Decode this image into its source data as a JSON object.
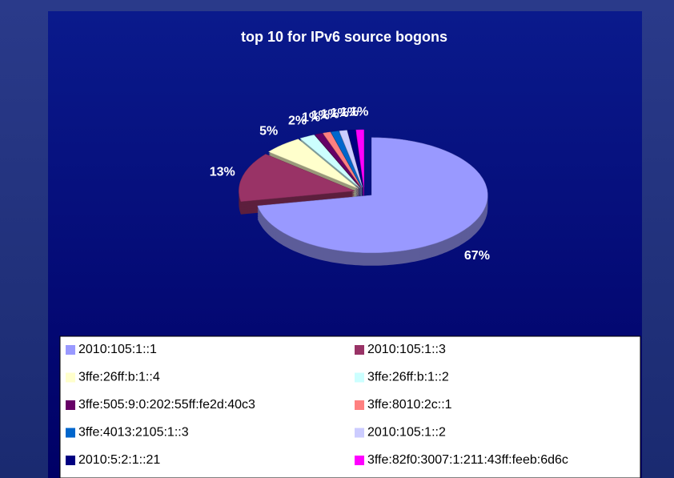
{
  "chart_data": {
    "type": "pie",
    "title": "top 10 for IPv6 source bogons",
    "categories": [
      "2010:105:1::1",
      "2010:105:1::3",
      "3ffe:26ff:b:1::4",
      "3ffe:26ff:b:1::2",
      "3ffe:505:9:0:202:55ff:fe2d:40c3",
      "3ffe:8010:2c::1",
      "3ffe:4013:2105:1::3",
      "2010:105:1::2",
      "2010:5:2:1::21",
      "3ffe:82f0:3007:1:211:43ff:feeb:6d6c"
    ],
    "values": [
      67,
      13,
      5,
      2,
      1,
      1,
      1,
      1,
      1,
      1
    ],
    "value_labels": [
      "67%",
      "13%",
      "5%",
      "2%",
      "1%",
      "1%",
      "1%",
      "1%",
      "1%",
      "1%"
    ],
    "colors": [
      "#9999ff",
      "#993366",
      "#ffffcc",
      "#ccffff",
      "#660066",
      "#ff8080",
      "#0066cc",
      "#ccccff",
      "#000080",
      "#ff00ff"
    ],
    "legend": "bottom"
  }
}
